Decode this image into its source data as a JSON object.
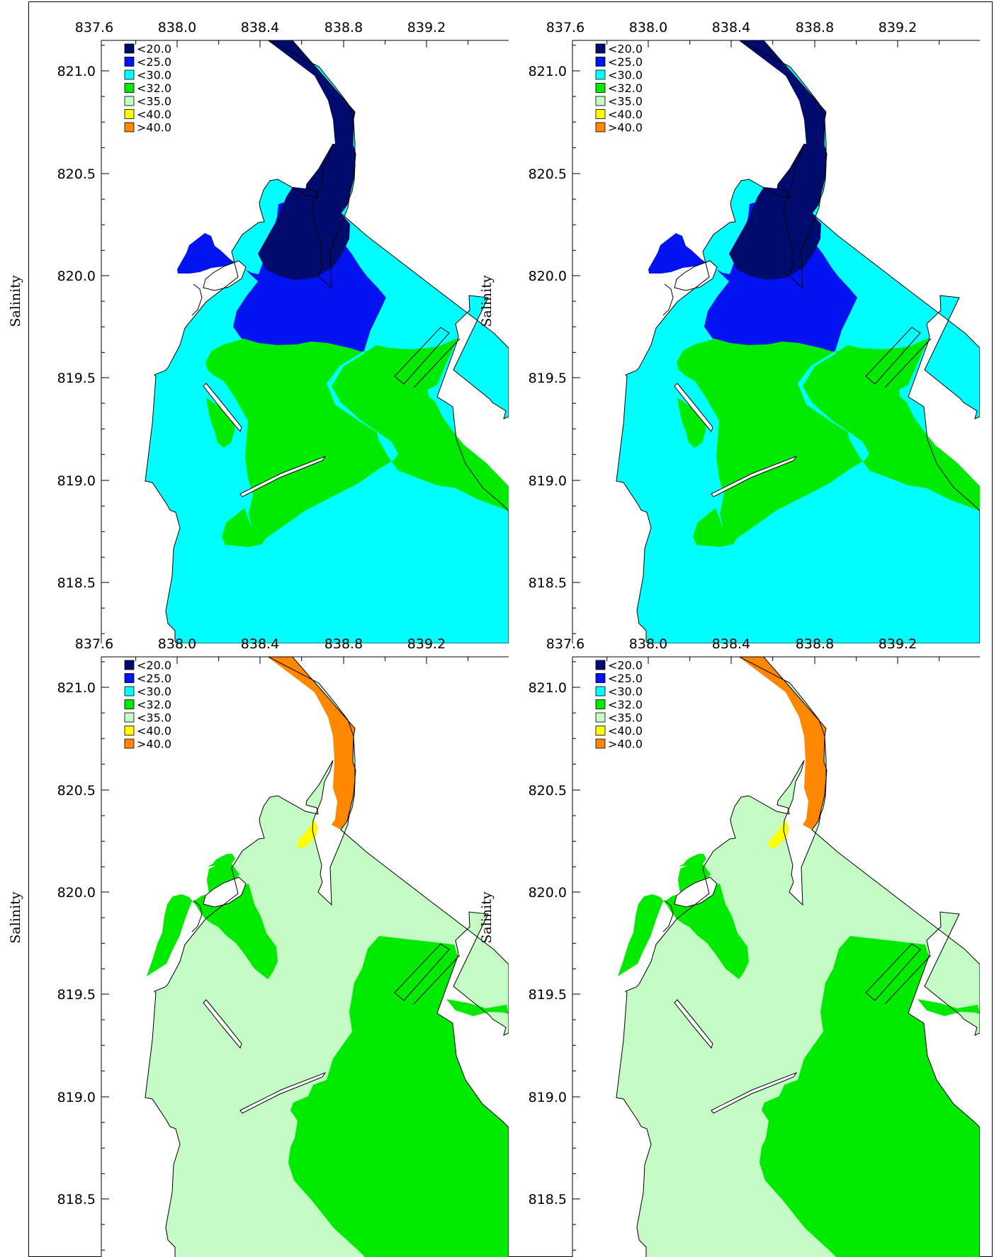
{
  "y_axis_label": "Salinity",
  "x_ticks": [
    "837.6",
    "838.0",
    "838.4",
    "838.8",
    "839.2"
  ],
  "y_ticks": [
    "821.0",
    "820.5",
    "820.0",
    "819.5",
    "819.0",
    "818.5"
  ],
  "legend": [
    {
      "label": "<20.0",
      "color": "#000b6e"
    },
    {
      "label": "<25.0",
      "color": "#0013f0"
    },
    {
      "label": "<30.0",
      "color": "#00ffff"
    },
    {
      "label": "<32.0",
      "color": "#00ea00"
    },
    {
      "label": "<35.0",
      "color": "#c5fbc5"
    },
    {
      "label": "<40.0",
      "color": "#ffff00"
    },
    {
      "label": ">40.0",
      "color": "#ff8800"
    }
  ],
  "panels": [
    {
      "id": "top-left",
      "variant": "low"
    },
    {
      "id": "top-right",
      "variant": "low"
    },
    {
      "id": "bottom-left",
      "variant": "high"
    },
    {
      "id": "bottom-right",
      "variant": "high"
    }
  ],
  "colors": {
    "background": "#ffffff",
    "outline": "#000000",
    "land": "#ffffff"
  }
}
